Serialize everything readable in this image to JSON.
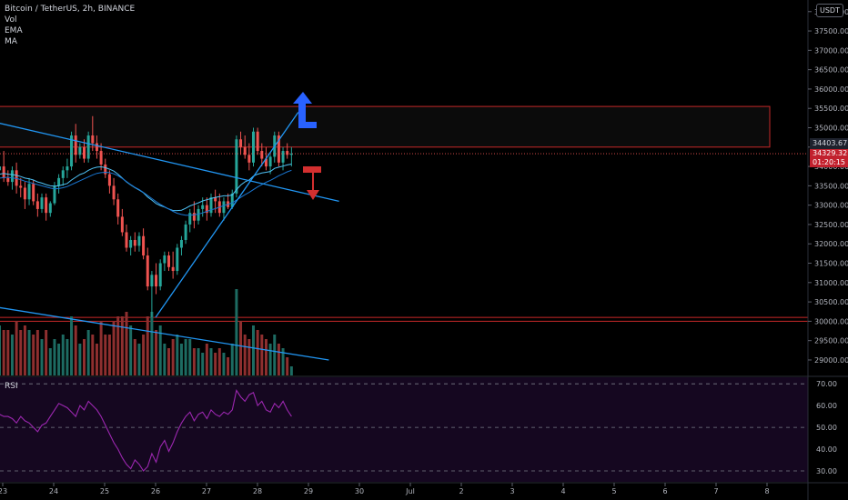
{
  "legend": {
    "symbol": "Bitcoin / TetherUS, 2h, BINANCE",
    "vol": "Vol",
    "ema": "EMA",
    "ma": "MA"
  },
  "rsi_label": "RSI",
  "unit_badge": "USDT",
  "price_tags": {
    "level": "34403.67",
    "last_price": "34329.32",
    "countdown": "01:20:15"
  },
  "colors": {
    "up": "#26a69a",
    "down": "#ef5350",
    "trendline": "#2196f3",
    "box": "#c62828",
    "rsi": "#9c27b0",
    "arrow_up": "#2962ff",
    "arrow_down": "#d32f2f"
  },
  "chart_data": {
    "type": "candlestick",
    "price_axis": {
      "ticks": [
        "29000.00",
        "29500.00",
        "30000.00",
        "30500.00",
        "31000.00",
        "31500.00",
        "32000.00",
        "32500.00",
        "33000.00",
        "33500.00",
        "34000.00",
        "34500.00",
        "35000.00",
        "35500.00",
        "36000.00",
        "36500.00",
        "37000.00",
        "37500.00",
        "38000.00"
      ],
      "range": [
        28600,
        38300
      ]
    },
    "rsi_axis": {
      "ticks": [
        "30.00",
        "40.00",
        "50.00",
        "60.00",
        "70.00"
      ],
      "range": [
        25,
        73
      ],
      "band": [
        30,
        70
      ]
    },
    "time_axis": [
      "23",
      "24",
      "25",
      "26",
      "27",
      "28",
      "29",
      "30",
      "Jul",
      "2",
      "3",
      "4",
      "5",
      "6",
      "7",
      "8"
    ],
    "zones": [
      {
        "name": "resistance",
        "low": 34500,
        "high": 35550
      },
      {
        "name": "support",
        "low": 30000,
        "high": 30100
      }
    ],
    "trendlines": [
      {
        "name": "upper-descending",
        "from": {
          "day": 22.0,
          "price": 35400
        },
        "to": {
          "day": 29.6,
          "price": 33100
        }
      },
      {
        "name": "lower-descending",
        "from": {
          "day": 22.0,
          "price": 30550
        },
        "to": {
          "day": 29.4,
          "price": 29000
        }
      },
      {
        "name": "rising-support",
        "from": {
          "day": 26.0,
          "price": 30100
        },
        "to": {
          "day": 28.8,
          "price": 35400
        }
      }
    ],
    "candles": [
      [
        33900,
        34150,
        33700,
        34000,
        0.55
      ],
      [
        34000,
        34400,
        33600,
        33700,
        0.5
      ],
      [
        33700,
        33900,
        33500,
        33600,
        0.5
      ],
      [
        33600,
        34000,
        33400,
        33900,
        0.45
      ],
      [
        33900,
        34100,
        33300,
        33500,
        0.6
      ],
      [
        33500,
        33700,
        33200,
        33450,
        0.5
      ],
      [
        33450,
        33600,
        32900,
        33150,
        0.55
      ],
      [
        33150,
        33700,
        33000,
        33550,
        0.5
      ],
      [
        33550,
        33650,
        33000,
        33100,
        0.45
      ],
      [
        33100,
        33300,
        32700,
        32900,
        0.5
      ],
      [
        32900,
        33300,
        32800,
        33200,
        0.4
      ],
      [
        33200,
        33300,
        32600,
        32800,
        0.5
      ],
      [
        32800,
        33100,
        32700,
        33050,
        0.3
      ],
      [
        33050,
        33600,
        33000,
        33500,
        0.4
      ],
      [
        33500,
        33800,
        33300,
        33700,
        0.35
      ],
      [
        33700,
        34000,
        33500,
        33900,
        0.45
      ],
      [
        33900,
        34200,
        33700,
        34000,
        0.4
      ],
      [
        34000,
        34900,
        33900,
        34800,
        0.65
      ],
      [
        34800,
        35100,
        34100,
        34300,
        0.55
      ],
      [
        34300,
        34600,
        34200,
        34500,
        0.35
      ],
      [
        34500,
        34700,
        34100,
        34200,
        0.4
      ],
      [
        34200,
        34900,
        34100,
        34800,
        0.5
      ],
      [
        34800,
        35300,
        34400,
        34600,
        0.45
      ],
      [
        34600,
        34800,
        34200,
        34400,
        0.35
      ],
      [
        34400,
        34600,
        33900,
        34050,
        0.6
      ],
      [
        34050,
        34200,
        33700,
        33800,
        0.45
      ],
      [
        33800,
        33900,
        33300,
        33500,
        0.45
      ],
      [
        33500,
        33700,
        33000,
        33150,
        0.6
      ],
      [
        33150,
        33300,
        32500,
        32700,
        0.65
      ],
      [
        32700,
        32900,
        32200,
        32300,
        0.65
      ],
      [
        32300,
        32500,
        31800,
        31900,
        0.7
      ],
      [
        31900,
        32200,
        31700,
        32100,
        0.55
      ],
      [
        32100,
        32300,
        31800,
        31950,
        0.4
      ],
      [
        31950,
        32300,
        31800,
        32200,
        0.35
      ],
      [
        32200,
        32400,
        31600,
        31700,
        0.45
      ],
      [
        31700,
        31900,
        30800,
        30900,
        0.65
      ],
      [
        30900,
        31300,
        30100,
        31200,
        0.7
      ],
      [
        31200,
        31500,
        30700,
        30900,
        0.5
      ],
      [
        30900,
        31600,
        30800,
        31500,
        0.55
      ],
      [
        31500,
        31800,
        31300,
        31700,
        0.35
      ],
      [
        31700,
        31800,
        31300,
        31400,
        0.3
      ],
      [
        31400,
        31800,
        31100,
        31300,
        0.4
      ],
      [
        31300,
        32000,
        31200,
        31900,
        0.45
      ],
      [
        31900,
        32200,
        31700,
        32100,
        0.35
      ],
      [
        32100,
        32600,
        32000,
        32500,
        0.4
      ],
      [
        32500,
        32900,
        32300,
        32800,
        0.4
      ],
      [
        32800,
        33100,
        32400,
        32600,
        0.3
      ],
      [
        32600,
        33000,
        32500,
        32900,
        0.3
      ],
      [
        32900,
        33200,
        32700,
        33000,
        0.25
      ],
      [
        33000,
        33200,
        32600,
        32800,
        0.35
      ],
      [
        32800,
        33300,
        32700,
        33200,
        0.3
      ],
      [
        33200,
        33400,
        32800,
        33100,
        0.25
      ],
      [
        33100,
        33300,
        32700,
        32800,
        0.3
      ],
      [
        32800,
        33200,
        32600,
        33100,
        0.25
      ],
      [
        33100,
        33300,
        32900,
        32950,
        0.2
      ],
      [
        32950,
        33400,
        32900,
        33300,
        0.35
      ],
      [
        33300,
        34800,
        33200,
        34700,
        0.95
      ],
      [
        34700,
        34900,
        34300,
        34500,
        0.6
      ],
      [
        34500,
        34800,
        34200,
        34300,
        0.45
      ],
      [
        34300,
        34600,
        33900,
        34100,
        0.4
      ],
      [
        34100,
        35000,
        34000,
        34900,
        0.55
      ],
      [
        34900,
        35000,
        34300,
        34400,
        0.5
      ],
      [
        34400,
        34600,
        34000,
        34200,
        0.45
      ],
      [
        34200,
        34500,
        33900,
        34000,
        0.4
      ],
      [
        34000,
        34300,
        33800,
        34250,
        0.35
      ],
      [
        34250,
        34900,
        34100,
        34800,
        0.45
      ],
      [
        34800,
        34900,
        34000,
        34100,
        0.35
      ],
      [
        34100,
        34500,
        33900,
        34400,
        0.3
      ],
      [
        34400,
        34600,
        34200,
        34300,
        0.2
      ],
      [
        34300,
        34500,
        34000,
        34329,
        0.1
      ]
    ],
    "ema": [
      33800,
      33820,
      33800,
      33790,
      33770,
      33740,
      33700,
      33680,
      33650,
      33600,
      33570,
      33530,
      33500,
      33490,
      33500,
      33530,
      33560,
      33650,
      33720,
      33790,
      33830,
      33900,
      33950,
      33980,
      33990,
      33970,
      33930,
      33880,
      33800,
      33700,
      33600,
      33520,
      33450,
      33390,
      33320,
      33210,
      33130,
      33040,
      32990,
      32950,
      32900,
      32860,
      32860,
      32870,
      32920,
      32980,
      33020,
      33060,
      33110,
      33140,
      33170,
      33200,
      33220,
      33240,
      33240,
      33260,
      33400,
      33520,
      33600,
      33650,
      33750,
      33800,
      33830,
      33850,
      33870,
      33950,
      33980,
      34010,
      34040,
      34060
    ],
    "ma": [
      33700,
      33710,
      33720,
      33700,
      33690,
      33660,
      33620,
      33590,
      33560,
      33530,
      33500,
      33470,
      33440,
      33420,
      33430,
      33450,
      33480,
      33530,
      33580,
      33630,
      33680,
      33730,
      33780,
      33820,
      33840,
      33850,
      33840,
      33810,
      33760,
      33690,
      33610,
      33530,
      33460,
      33400,
      33330,
      33250,
      33170,
      33090,
      33020,
      32960,
      32900,
      32840,
      32790,
      32760,
      32740,
      32740,
      32750,
      32770,
      32800,
      32840,
      32880,
      32910,
      32950,
      32990,
      33020,
      33060,
      33130,
      33200,
      33270,
      33330,
      33400,
      33470,
      33530,
      33590,
      33640,
      33700,
      33760,
      33810,
      33860,
      33900
    ],
    "rsi": [
      56,
      55,
      55,
      54,
      52,
      55,
      53,
      52,
      50,
      48,
      51,
      52,
      55,
      58,
      61,
      60,
      59,
      57,
      55,
      60,
      58,
      62,
      60,
      58,
      55,
      51,
      47,
      43,
      40,
      36,
      33,
      31,
      35,
      33,
      30,
      32,
      38,
      34,
      41,
      44,
      39,
      43,
      48,
      52,
      55,
      57,
      53,
      56,
      57,
      54,
      58,
      56,
      55,
      57,
      56,
      58,
      67,
      64,
      62,
      65,
      66,
      60,
      62,
      58,
      57,
      61,
      59,
      62,
      58,
      55
    ]
  }
}
